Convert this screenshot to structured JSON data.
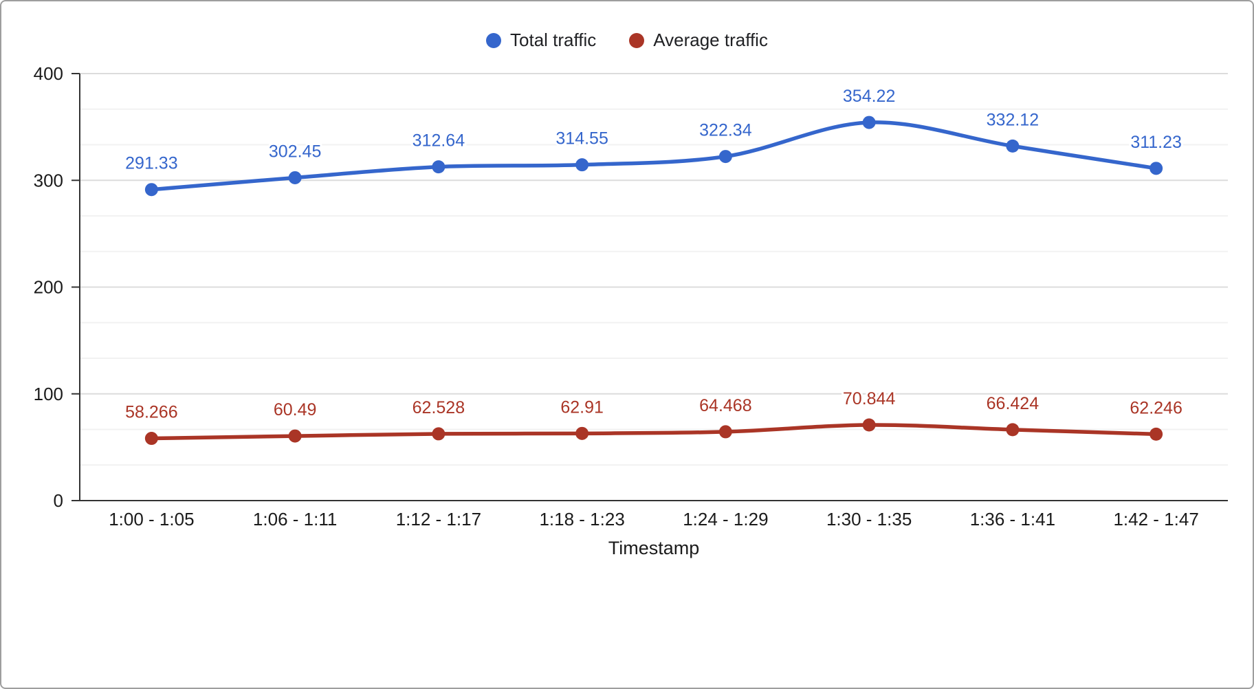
{
  "chart_data": {
    "type": "line",
    "title": "",
    "xlabel": "Timestamp",
    "ylabel": "",
    "ylim": [
      0,
      400
    ],
    "yticks": [
      0,
      100,
      200,
      300,
      400
    ],
    "grid": true,
    "legend_position": "top",
    "point_labels_visible": true,
    "categories": [
      "1:00 - 1:05",
      "1:06 - 1:11",
      "1:12 - 1:17",
      "1:18 - 1:23",
      "1:24 - 1:29",
      "1:30 - 1:35",
      "1:36 - 1:41",
      "1:42 - 1:47"
    ],
    "series": [
      {
        "name": "Total traffic",
        "color": "#3566cc",
        "values": [
          291.33,
          302.45,
          312.64,
          314.55,
          322.34,
          354.22,
          332.12,
          311.23
        ]
      },
      {
        "name": "Average traffic",
        "color": "#aa3526",
        "values": [
          58.266,
          60.49,
          62.528,
          62.91,
          64.468,
          70.844,
          66.424,
          62.246
        ]
      }
    ],
    "colors": {
      "axis": "#333333",
      "gridline_major": "#dcdcdc",
      "gridline_minor": "#f2f2f2",
      "tick_label": "#1b1b1b"
    }
  }
}
